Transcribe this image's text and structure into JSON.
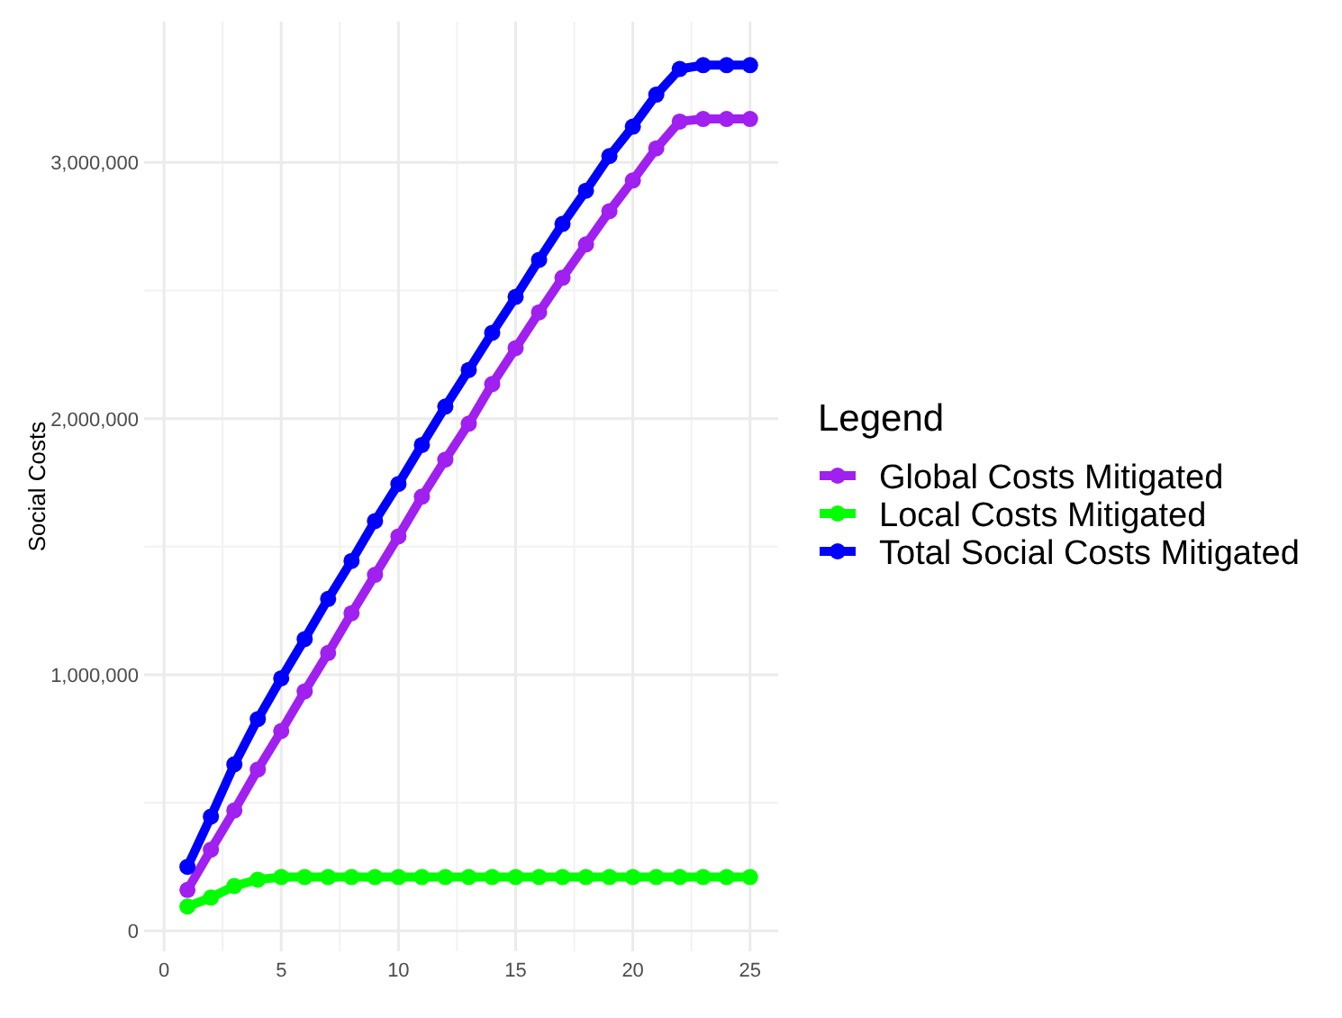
{
  "chart_data": {
    "type": "line",
    "ylabel": "Social Costs",
    "legend_title": "Legend",
    "legend": "right",
    "grid": true,
    "marker": "circle",
    "line_style": "solid",
    "x": [
      1,
      2,
      3,
      4,
      5,
      6,
      7,
      8,
      9,
      10,
      11,
      12,
      13,
      14,
      15,
      16,
      17,
      18,
      19,
      20,
      21,
      22,
      23,
      24,
      25
    ],
    "xlim": [
      -0.85,
      26.2
    ],
    "xticks": [
      0,
      5,
      10,
      15,
      20,
      25
    ],
    "ylim": [
      -80000,
      3550000
    ],
    "yticks": [
      {
        "value": 0,
        "label": "0"
      },
      {
        "value": 1000000,
        "label": "1,000,000"
      },
      {
        "value": 2000000,
        "label": "2,000,000"
      },
      {
        "value": 3000000,
        "label": "3,000,000"
      }
    ],
    "series": [
      {
        "name": "Global Costs Mitigated",
        "color": "#a020f0",
        "values": [
          160000,
          317000,
          470000,
          630000,
          780000,
          935000,
          1085000,
          1240000,
          1390000,
          1540000,
          1695000,
          1840000,
          1980000,
          2135000,
          2275000,
          2415000,
          2550000,
          2680000,
          2810000,
          2930000,
          3055000,
          3160000,
          3170000,
          3170000,
          3170000
        ]
      },
      {
        "name": "Local Costs Mitigated",
        "color": "#00ff00",
        "values": [
          95000,
          130000,
          175000,
          200000,
          210000,
          210000,
          210000,
          210000,
          210000,
          210000,
          210000,
          210000,
          210000,
          210000,
          210000,
          210000,
          210000,
          210000,
          210000,
          210000,
          210000,
          210000,
          210000,
          210000,
          210000
        ]
      },
      {
        "name": "Total Social Costs Mitigated",
        "color": "#0000ff",
        "values": [
          250000,
          446000,
          650000,
          827000,
          986000,
          1139000,
          1296000,
          1444000,
          1600000,
          1745000,
          1897000,
          2047000,
          2190000,
          2335000,
          2475000,
          2620000,
          2760000,
          2890000,
          3025000,
          3140000,
          3265000,
          3365000,
          3380000,
          3380000,
          3380000
        ]
      }
    ]
  }
}
